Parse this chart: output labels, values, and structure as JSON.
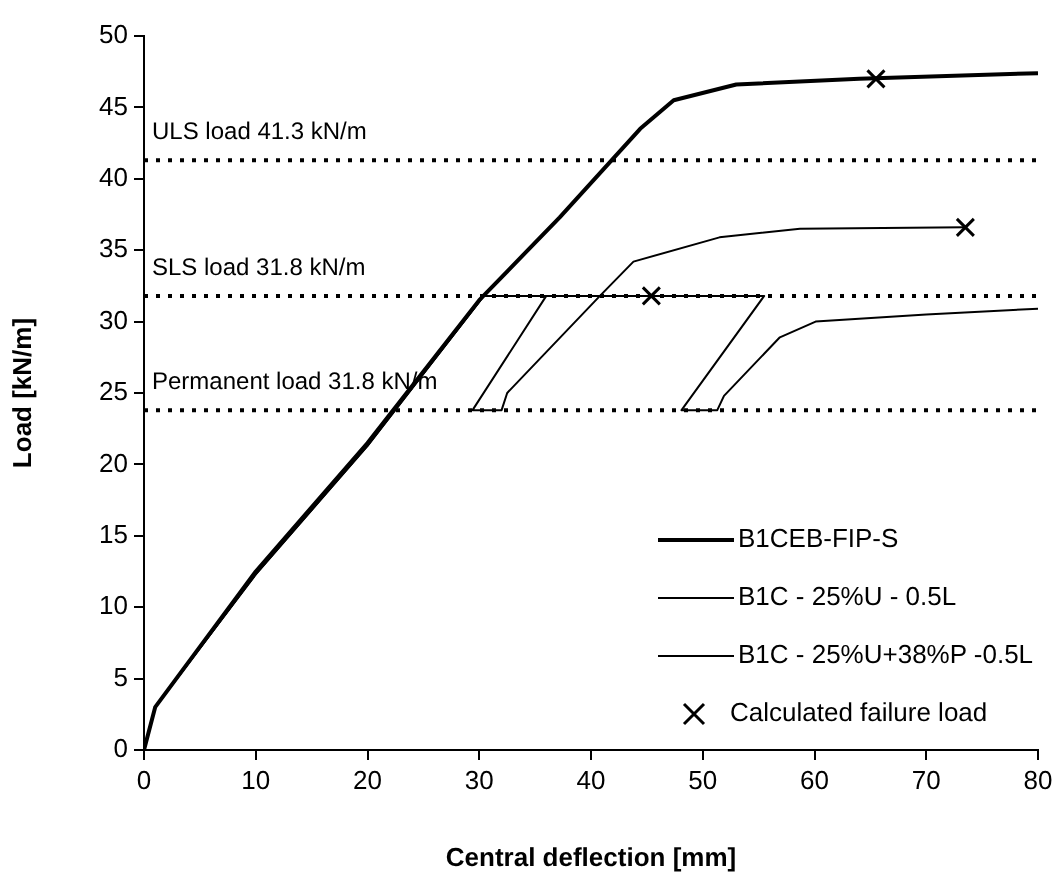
{
  "chart_data": {
    "type": "line",
    "xlabel": "Central deflection [mm]",
    "ylabel": "Load [kN/m]",
    "xlim": [
      0,
      80
    ],
    "xticks": [
      0,
      10,
      20,
      30,
      40,
      50,
      60,
      70,
      80
    ],
    "ylim": [
      0,
      50
    ],
    "yticks": [
      0,
      5,
      10,
      15,
      20,
      25,
      30,
      35,
      40,
      45,
      50
    ],
    "grid": false,
    "legend": "bottom right",
    "line_style": "solid",
    "series": [
      {
        "name": "B1CEB-FIP-S",
        "marker": "none",
        "color": "#000000",
        "x": [
          0,
          1,
          10,
          20,
          30,
          37.2,
          44.4,
          47.4,
          53,
          64,
          80
        ],
        "values": [
          0,
          3,
          12.5,
          21.5,
          31.5,
          37.3,
          43.5,
          45.5,
          46.6,
          47,
          47.4
        ]
      },
      {
        "name": "B1C - 25%U - 0.5L",
        "marker": "none",
        "color": "#000000",
        "x": [
          0,
          1,
          10,
          20,
          30.4,
          36,
          29.4,
          32,
          32.5,
          40.8,
          43.8,
          51.5,
          58.7,
          73.5
        ],
        "values": [
          0,
          3,
          12.3,
          21.3,
          31.8,
          31.8,
          23.8,
          23.8,
          25,
          31.8,
          34.2,
          35.9,
          36.5,
          36.6
        ]
      },
      {
        "name": "B1C - 25%U+38%P -0.5L",
        "marker": "none",
        "color": "#000000",
        "x": [
          0,
          1,
          10,
          20,
          30.4,
          55.5,
          48.1,
          51.3,
          51.9,
          56.9,
          60.1,
          70,
          80
        ],
        "values": [
          0,
          3,
          12.3,
          21.3,
          31.8,
          31.8,
          23.8,
          23.8,
          24.8,
          28.9,
          30,
          30.5,
          30.9
        ]
      },
      {
        "name": "Calculated failure load",
        "type": "scatter",
        "marker": "cross",
        "color": "#000000",
        "x": [
          45.4,
          65.5,
          73.5
        ],
        "values": [
          31.8,
          47,
          36.6
        ]
      }
    ],
    "ref_lines": [
      {
        "axis": "y",
        "value": 41.3,
        "label": "ULS load 41.3 kN/m",
        "line_style": "dotted",
        "color": "#000000"
      },
      {
        "axis": "y",
        "value": 31.8,
        "label": "SLS load 31.8 kN/m",
        "line_style": "dotted",
        "color": "#000000"
      },
      {
        "axis": "y",
        "value": 23.8,
        "label": "Permanent load 31.8 kN/m",
        "line_style": "dotted",
        "color": "#000000"
      }
    ]
  }
}
